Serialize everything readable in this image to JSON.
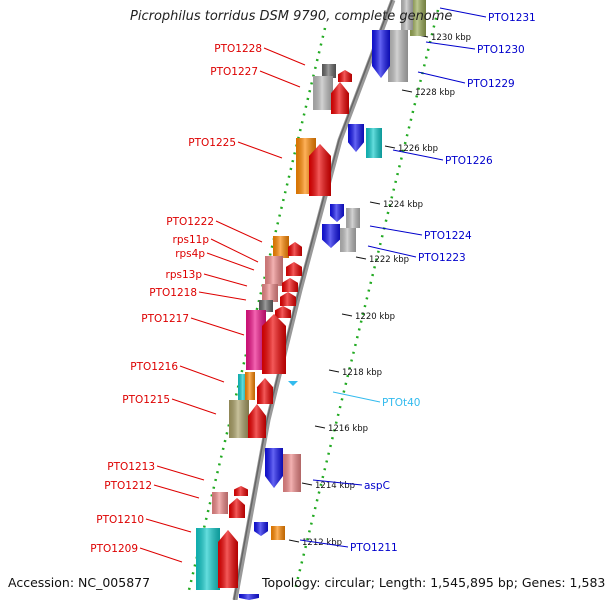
{
  "title": "Picrophilus torridus DSM 9790, complete genome",
  "footer": {
    "accession": "Accession: NC_005877",
    "summary": "Topology: circular; Length: 1,545,895 bp; Genes: 1,583"
  },
  "colors": {
    "left_label": "#dd0000",
    "right_label": "#0000cc",
    "rna_label": "#33bbee",
    "backbone": "#888888",
    "dotted_ring": "#22aa22"
  },
  "kbp_ticks": [
    "1230 kbp",
    "1228 kbp",
    "1226 kbp",
    "1224 kbp",
    "1222 kbp",
    "1220 kbp",
    "1218 kbp",
    "1216 kbp",
    "1214 kbp",
    "1212 kbp"
  ],
  "left_genes": [
    "PTO1228",
    "PTO1227",
    "PTO1225",
    "PTO1222",
    "rps11p",
    "rps4p",
    "rps13p",
    "PTO1218",
    "PTO1217",
    "PTO1216",
    "PTO1215",
    "PTO1213",
    "PTO1212",
    "PTO1210",
    "PTO1209"
  ],
  "right_genes": [
    "PTO1231",
    "PTO1230",
    "PTO1229",
    "PTO1226",
    "PTO1224",
    "PTO1223",
    "aspC",
    "PTO1211"
  ],
  "rna_genes": [
    "PTOt40"
  ]
}
